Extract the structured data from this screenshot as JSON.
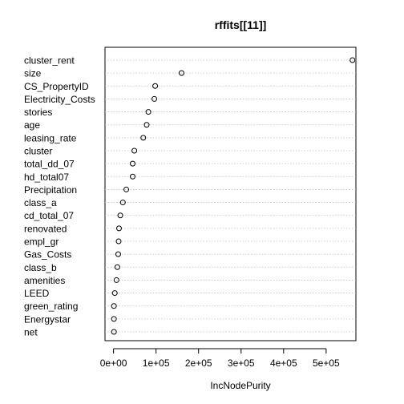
{
  "chart_data": {
    "type": "scatter",
    "title": "rffits[[11]]",
    "xlabel": "IncNodePurity",
    "ylabel": "",
    "xlim": [
      -20000,
      570000
    ],
    "x_ticks": [
      0,
      100000,
      200000,
      300000,
      400000,
      500000
    ],
    "x_tick_labels": [
      "0e+00",
      "1e+05",
      "2e+05",
      "3e+05",
      "4e+05",
      "5e+05"
    ],
    "grid": true,
    "categories": [
      "cluster_rent",
      "size",
      "CS_PropertyID",
      "Electricity_Costs",
      "stories",
      "age",
      "leasing_rate",
      "cluster",
      "total_dd_07",
      "hd_total07",
      "Precipitation",
      "class_a",
      "cd_total_07",
      "renovated",
      "empl_gr",
      "Gas_Costs",
      "class_b",
      "amenities",
      "LEED",
      "green_rating",
      "Energystar",
      "net"
    ],
    "values": [
      562000,
      160000,
      98000,
      96000,
      82000,
      78000,
      70000,
      49000,
      45000,
      45000,
      30000,
      22000,
      16000,
      13000,
      12000,
      11000,
      9000,
      7000,
      3000,
      1000,
      1000,
      1000
    ]
  }
}
